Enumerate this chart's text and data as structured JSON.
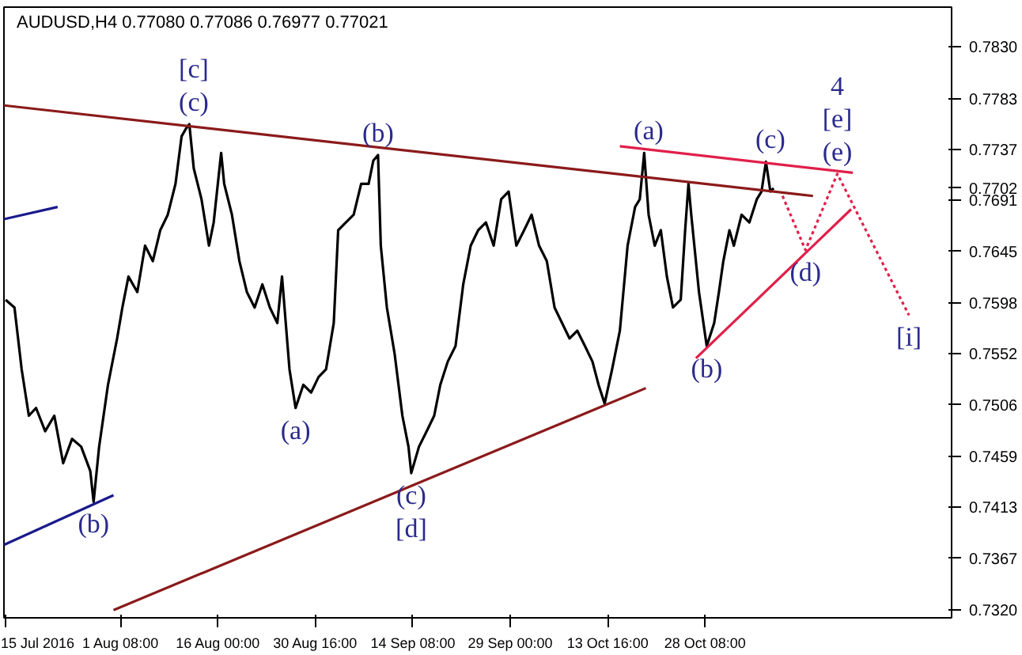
{
  "chart_data": {
    "type": "line",
    "title": "AUDUSD,H4  0.77080 0.77086 0.76977 0.77021",
    "xlim": [
      "2016-07-14T18:00",
      "2016-12-04T11:00"
    ],
    "ylim": [
      0.7313,
      0.7866
    ],
    "xticks": [
      {
        "value": "2016-07-15T00:00",
        "label": "15 Jul 2016"
      },
      {
        "value": "2016-08-01T08:00",
        "label": "1 Aug 08:00"
      },
      {
        "value": "2016-08-16T00:00",
        "label": "16 Aug 00:00"
      },
      {
        "value": "2016-08-30T16:00",
        "label": "30 Aug 16:00"
      },
      {
        "value": "2016-09-14T08:00",
        "label": "14 Sep 08:00"
      },
      {
        "value": "2016-09-29T00:00",
        "label": "29 Sep 00:00"
      },
      {
        "value": "2016-10-13T16:00",
        "label": "13 Oct 16:00"
      },
      {
        "value": "2016-10-28T08:00",
        "label": "28 Oct 08:00"
      }
    ],
    "yticks": [
      {
        "value": 0.783,
        "label": "0.7830"
      },
      {
        "value": 0.7783,
        "label": "0.7783"
      },
      {
        "value": 0.7737,
        "label": "0.7737"
      },
      {
        "value": 0.7702,
        "label": "0.7702"
      },
      {
        "value": 0.7691,
        "label": "0.7691"
      },
      {
        "value": 0.7645,
        "label": "0.7645"
      },
      {
        "value": 0.7598,
        "label": "0.7598"
      },
      {
        "value": 0.7552,
        "label": "0.7552"
      },
      {
        "value": 0.7506,
        "label": "0.7506"
      },
      {
        "value": 0.7459,
        "label": "0.7459"
      },
      {
        "value": 0.7413,
        "label": "0.7413"
      },
      {
        "value": 0.7367,
        "label": "0.7367"
      },
      {
        "value": 0.732,
        "label": "0.7320"
      }
    ],
    "grid": false,
    "marker": "none",
    "series": [
      {
        "color": "#000000",
        "line_style": "solid",
        "x": [
          "2016-07-15T00:00",
          "2016-07-16T08:00",
          "2016-07-17T10:00",
          "2016-07-18T12:00",
          "2016-07-19T14:00",
          "2016-07-20T23:00",
          "2016-07-22T08:00",
          "2016-07-23T16:00",
          "2016-07-25T00:00",
          "2016-07-26T09:00",
          "2016-07-27T18:00",
          "2016-07-28T06:00",
          "2016-07-29T02:00",
          "2016-07-30T10:00",
          "2016-07-31T19:00",
          "2016-08-01T14:00",
          "2016-08-02T12:00",
          "2016-08-03T20:00",
          "2016-08-05T00:00",
          "2016-08-06T04:00",
          "2016-08-07T07:00",
          "2016-08-08T10:00",
          "2016-08-09T14:00",
          "2016-08-10T12:00",
          "2016-08-11T04:00",
          "2016-08-11T16:00",
          "2016-08-12T08:00",
          "2016-08-13T12:00",
          "2016-08-14T15:00",
          "2016-08-15T08:00",
          "2016-08-16T11:00",
          "2016-08-16T22:00",
          "2016-08-18T02:00",
          "2016-08-19T05:00",
          "2016-08-20T08:00",
          "2016-08-21T12:00",
          "2016-08-22T16:00",
          "2016-08-23T19:00",
          "2016-08-24T22:00",
          "2016-08-25T15:00",
          "2016-08-26T18:00",
          "2016-08-27T16:00",
          "2016-08-28T20:00",
          "2016-08-30T00:00",
          "2016-08-31T03:00",
          "2016-09-01T06:00",
          "2016-09-02T10:00",
          "2016-09-03T02:00",
          "2016-09-04T06:00",
          "2016-09-05T10:00",
          "2016-09-06T13:00",
          "2016-09-07T16:00",
          "2016-09-08T09:00",
          "2016-09-09T02:00",
          "2016-09-09T12:00",
          "2016-09-10T10:00",
          "2016-09-11T14:00",
          "2016-09-12T18:00",
          "2016-09-13T16:00",
          "2016-09-14T02:00",
          "2016-09-15T06:00",
          "2016-09-16T10:00",
          "2016-09-17T13:00",
          "2016-09-18T11:00",
          "2016-09-19T14:00",
          "2016-09-20T18:00",
          "2016-09-21T22:00",
          "2016-09-23T01:00",
          "2016-09-24T04:00",
          "2016-09-25T08:00",
          "2016-09-26T12:00",
          "2016-09-27T15:00",
          "2016-09-28T18:00",
          "2016-09-29T22:00",
          "2016-10-01T02:00",
          "2016-10-02T05:00",
          "2016-10-03T08:00",
          "2016-10-04T12:00",
          "2016-10-05T16:00",
          "2016-10-06T19:00",
          "2016-10-07T22:00",
          "2016-10-09T02:00",
          "2016-10-10T06:00",
          "2016-10-11T09:00",
          "2016-10-12T07:00",
          "2016-10-13T05:00",
          "2016-10-14T08:00",
          "2016-10-15T12:00",
          "2016-10-16T16:00",
          "2016-10-17T19:00",
          "2016-10-18T12:00",
          "2016-10-19T04:00",
          "2016-10-19T20:00",
          "2016-10-20T18:00",
          "2016-10-21T16:00",
          "2016-10-22T14:00",
          "2016-10-23T12:00",
          "2016-10-24T16:00",
          "2016-10-25T08:00",
          "2016-10-25T20:00",
          "2016-10-26T06:00",
          "2016-10-27T10:00",
          "2016-10-28T14:00",
          "2016-10-29T17:00",
          "2016-10-30T10:00",
          "2016-10-31T02:00",
          "2016-11-01T00:00",
          "2016-11-01T16:00",
          "2016-11-02T20:00",
          "2016-11-04T00:00",
          "2016-11-05T03:00",
          "2016-11-05T20:00",
          "2016-11-06T12:00",
          "2016-11-07T04:00",
          "2016-11-07T16:00"
        ],
        "values": [
          0.7601,
          0.7594,
          0.7538,
          0.7496,
          0.7503,
          0.7482,
          0.7496,
          0.7453,
          0.7475,
          0.7468,
          0.7446,
          0.7418,
          0.7468,
          0.7524,
          0.7566,
          0.7594,
          0.7622,
          0.7608,
          0.765,
          0.7636,
          0.7664,
          0.7678,
          0.7706,
          0.7749,
          0.7756,
          0.776,
          0.772,
          0.7692,
          0.765,
          0.7671,
          0.7734,
          0.7706,
          0.7678,
          0.7636,
          0.7608,
          0.7594,
          0.7615,
          0.7594,
          0.758,
          0.7622,
          0.7538,
          0.7503,
          0.7524,
          0.7517,
          0.7531,
          0.7538,
          0.758,
          0.7664,
          0.7671,
          0.7678,
          0.7706,
          0.7706,
          0.7727,
          0.7732,
          0.765,
          0.7594,
          0.7552,
          0.7496,
          0.7468,
          0.7444,
          0.7468,
          0.7482,
          0.7496,
          0.7524,
          0.7545,
          0.7559,
          0.7615,
          0.765,
          0.7664,
          0.7671,
          0.765,
          0.7692,
          0.7699,
          0.765,
          0.7664,
          0.7678,
          0.765,
          0.7636,
          0.7594,
          0.758,
          0.7566,
          0.7573,
          0.7559,
          0.7545,
          0.7524,
          0.7507,
          0.7538,
          0.7573,
          0.765,
          0.7685,
          0.7692,
          0.7734,
          0.7678,
          0.765,
          0.7664,
          0.7622,
          0.7594,
          0.7601,
          0.7664,
          0.7706,
          0.7678,
          0.7608,
          0.7559,
          0.758,
          0.7608,
          0.7636,
          0.7664,
          0.765,
          0.7678,
          0.7671,
          0.7692,
          0.7699,
          0.7726,
          0.7699,
          0.7702
        ]
      },
      {
        "color": "#8b1a1a",
        "line_style": "solid",
        "x": [
          "2016-07-14T18:00",
          "2016-11-13T14:00"
        ],
        "values": [
          0.7777,
          0.7695
        ]
      },
      {
        "color": "#8b1a1a",
        "line_style": "solid",
        "x": [
          "2016-07-31T06:00",
          "2016-10-19T10:00"
        ],
        "values": [
          0.732,
          0.7521
        ]
      },
      {
        "color": "#1a1a8c",
        "line_style": "solid",
        "x": [
          "2016-07-14T18:00",
          "2016-07-22T20:00"
        ],
        "values": [
          0.7674,
          0.7685
        ]
      },
      {
        "color": "#1a1a8c",
        "line_style": "solid",
        "x": [
          "2016-07-14T18:00",
          "2016-07-31T06:00"
        ],
        "values": [
          0.7379,
          0.7424
        ]
      },
      {
        "color": "#e0204a",
        "line_style": "solid",
        "x": [
          "2016-10-15T12:00",
          "2016-11-19T14:00"
        ],
        "values": [
          0.774,
          0.7716
        ]
      },
      {
        "color": "#e0204a",
        "line_style": "solid",
        "x": [
          "2016-10-26T23:00",
          "2016-11-19T08:00"
        ],
        "values": [
          0.7548,
          0.7683
        ]
      },
      {
        "color": "#e0204a",
        "line_style": "dotted",
        "x": [
          "2016-11-09T00:00",
          "2016-11-12T11:00",
          "2016-11-17T06:00",
          "2016-11-28T01:00"
        ],
        "values": [
          0.7695,
          0.7646,
          0.7715,
          0.7587
        ]
      }
    ],
    "annotations": [
      {
        "text": "(c)",
        "x": "2016-08-12T08:00",
        "y": 0.776
      },
      {
        "text": "[c]",
        "x": "2016-08-12T08:00",
        "y": 0.776
      },
      {
        "text": "(b)",
        "x": "2016-09-09T02:00",
        "y": 0.7732
      },
      {
        "text": "(a)",
        "x": "2016-08-27T16:00",
        "y": 0.7503
      },
      {
        "text": "(b)",
        "x": "2016-07-28T06:00",
        "y": 0.7418
      },
      {
        "text": "(c)",
        "x": "2016-09-14T02:00",
        "y": 0.7444
      },
      {
        "text": "[d]",
        "x": "2016-09-14T02:00",
        "y": 0.7444
      },
      {
        "text": "(a)",
        "x": "2016-10-19T20:00",
        "y": 0.7734
      },
      {
        "text": "(c)",
        "x": "2016-11-07T04:00",
        "y": 0.7726
      },
      {
        "text": "(e)",
        "x": "2016-11-17T06:00",
        "y": 0.7715
      },
      {
        "text": "[e]",
        "x": "2016-11-17T06:00",
        "y": 0.7715
      },
      {
        "text": "4",
        "x": "2016-11-17T06:00",
        "y": 0.7715
      },
      {
        "text": "(d)",
        "x": "2016-11-12T11:00",
        "y": 0.7646
      },
      {
        "text": "(b)",
        "x": "2016-10-28T14:00",
        "y": 0.7559
      },
      {
        "text": "[i]",
        "x": "2016-11-28T01:00",
        "y": 0.7587
      }
    ]
  }
}
